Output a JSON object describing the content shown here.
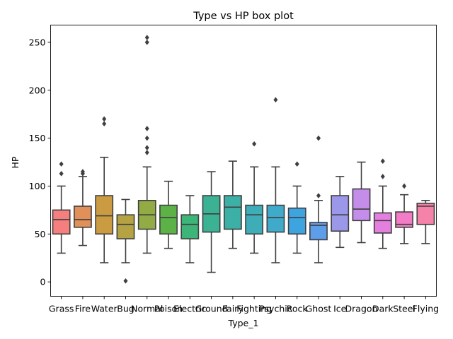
{
  "chart_data": {
    "type": "box",
    "title": "Type vs HP box plot",
    "xlabel": "Type_1",
    "ylabel": "HP",
    "ylim": [
      -15,
      268
    ],
    "yticks": [
      0,
      50,
      100,
      150,
      200,
      250
    ],
    "grid": false,
    "categories": [
      "Grass",
      "Fire",
      "Water",
      "Bug",
      "Normal",
      "Poison",
      "Electric",
      "Ground",
      "Fairy",
      "Fighting",
      "Psychic",
      "Rock",
      "Ghost",
      "Ice",
      "Dragon",
      "Dark",
      "Steel",
      "Flying"
    ],
    "boxes": [
      {
        "category": "Grass",
        "color": "#f47f7e",
        "whisker_low": 30,
        "q1": 50,
        "median": 65,
        "q3": 75,
        "whisker_high": 100,
        "outliers": [
          113,
          123
        ]
      },
      {
        "category": "Fire",
        "color": "#e1905a",
        "whisker_low": 38,
        "q1": 57,
        "median": 65,
        "q3": 79,
        "whisker_high": 110,
        "outliers": [
          113,
          115
        ]
      },
      {
        "category": "Water",
        "color": "#cb9b42",
        "whisker_low": 20,
        "q1": 50,
        "median": 69,
        "q3": 90,
        "whisker_high": 130,
        "outliers": [
          165,
          170
        ]
      },
      {
        "category": "Bug",
        "color": "#b5a243",
        "whisker_low": 20,
        "q1": 45,
        "median": 60,
        "q3": 70,
        "whisker_high": 86,
        "outliers": [
          1
        ]
      },
      {
        "category": "Normal",
        "color": "#92ab44",
        "whisker_low": 30,
        "q1": 55,
        "median": 70,
        "q3": 85,
        "whisker_high": 120,
        "outliers": [
          135,
          140,
          150,
          160,
          250,
          255
        ]
      },
      {
        "category": "Poison",
        "color": "#5db247",
        "whisker_low": 35,
        "q1": 50,
        "median": 67,
        "q3": 80,
        "whisker_high": 105,
        "outliers": []
      },
      {
        "category": "Electric",
        "color": "#3db478",
        "whisker_low": 20,
        "q1": 45,
        "median": 60,
        "q3": 70,
        "whisker_high": 90,
        "outliers": []
      },
      {
        "category": "Ground",
        "color": "#3bb293",
        "whisker_low": 10,
        "q1": 52,
        "median": 71,
        "q3": 90,
        "whisker_high": 115,
        "outliers": []
      },
      {
        "category": "Fairy",
        "color": "#3cafa6",
        "whisker_low": 35,
        "q1": 55,
        "median": 78,
        "q3": 90,
        "whisker_high": 126,
        "outliers": []
      },
      {
        "category": "Fighting",
        "color": "#3eadb8",
        "whisker_low": 30,
        "q1": 50,
        "median": 70,
        "q3": 80,
        "whisker_high": 120,
        "outliers": [
          144
        ]
      },
      {
        "category": "Psychic",
        "color": "#40aacb",
        "whisker_low": 20,
        "q1": 52,
        "median": 67,
        "q3": 80,
        "whisker_high": 120,
        "outliers": [
          190
        ]
      },
      {
        "category": "Rock",
        "color": "#3ea4e0",
        "whisker_low": 30,
        "q1": 50,
        "median": 67,
        "q3": 77,
        "whisker_high": 100,
        "outliers": [
          123
        ]
      },
      {
        "category": "Ghost",
        "color": "#5e9de8",
        "whisker_low": 20,
        "q1": 44,
        "median": 59,
        "q3": 62,
        "whisker_high": 85,
        "outliers": [
          90,
          150,
          150
        ]
      },
      {
        "category": "Ice",
        "color": "#9b98ea",
        "whisker_low": 36,
        "q1": 53,
        "median": 70,
        "q3": 90,
        "whisker_high": 110,
        "outliers": []
      },
      {
        "category": "Dragon",
        "color": "#c48de9",
        "whisker_low": 41,
        "q1": 64,
        "median": 76,
        "q3": 97,
        "whisker_high": 125,
        "outliers": []
      },
      {
        "category": "Dark",
        "color": "#e47fe0",
        "whisker_low": 35,
        "q1": 51,
        "median": 64,
        "q3": 72,
        "whisker_high": 100,
        "outliers": [
          110,
          126
        ]
      },
      {
        "category": "Steel",
        "color": "#f27cc5",
        "whisker_low": 40,
        "q1": 57,
        "median": 60,
        "q3": 73,
        "whisker_high": 91,
        "outliers": [
          100
        ]
      },
      {
        "category": "Flying",
        "color": "#f582a8",
        "whisker_low": 40,
        "q1": 60,
        "median": 79,
        "q3": 82,
        "whisker_high": 85,
        "outliers": []
      }
    ]
  }
}
